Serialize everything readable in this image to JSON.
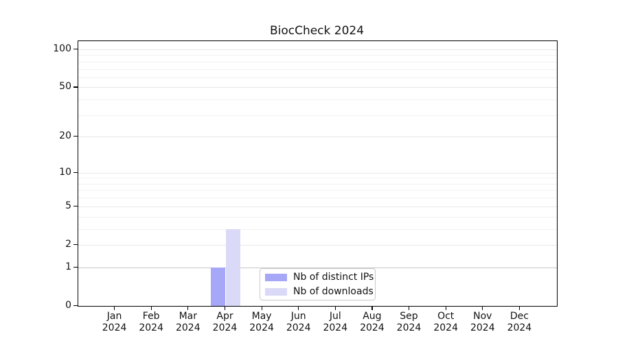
{
  "chart_data": {
    "type": "bar",
    "title": "BiocCheck 2024",
    "xlabel": "",
    "ylabel": "",
    "categories": [
      "Jan 2024",
      "Feb 2024",
      "Mar 2024",
      "Apr 2024",
      "May 2024",
      "Jun 2024",
      "Jul 2024",
      "Aug 2024",
      "Sep 2024",
      "Oct 2024",
      "Nov 2024",
      "Dec 2024"
    ],
    "series": [
      {
        "name": "Nb of distinct IPs",
        "color": "#a7a7f7",
        "values": [
          0,
          0,
          0,
          1,
          0,
          0,
          0,
          0,
          0,
          0,
          0,
          0
        ]
      },
      {
        "name": "Nb of downloads",
        "color": "#dadaf8",
        "values": [
          0,
          0,
          0,
          3,
          0,
          0,
          0,
          0,
          0,
          0,
          0,
          0
        ]
      }
    ],
    "yscale": "log1p",
    "ylim": [
      0,
      116
    ],
    "y_major_ticks": [
      0,
      1,
      2,
      5,
      10,
      20,
      50,
      100
    ],
    "y_minor_gridlines": [
      3,
      4,
      6,
      7,
      8,
      9,
      30,
      40,
      60,
      70,
      80,
      90
    ],
    "grid": true,
    "legend_position": "lower center"
  }
}
